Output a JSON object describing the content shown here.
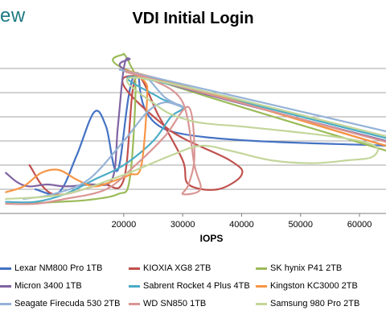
{
  "header": {
    "logo_text": "ew",
    "title": "VDI Initial Login"
  },
  "chart_data": {
    "type": "line",
    "title": "VDI Initial Login",
    "xlabel": "IOPS",
    "ylabel": "",
    "xlim": [
      -1000,
      64500
    ],
    "ylim": [
      0,
      1.75
    ],
    "x_ticks": [
      20000,
      30000,
      40000,
      50000,
      60000
    ],
    "x_tick_labels": [
      "20000",
      "30000",
      "40000",
      "50000",
      "60000"
    ],
    "y_gridlines": [
      0.25,
      0.5,
      0.75,
      1.0,
      1.25,
      1.5
    ],
    "grid": "horizontal",
    "legend_placement": "bottom",
    "series": [
      {
        "name": "Lexar NM800 Pro 1TB",
        "color": "#4472c4",
        "points": [
          [
            5000,
            0.25
          ],
          [
            9000,
            0.22
          ],
          [
            12000,
            0.6
          ],
          [
            15000,
            1.05
          ],
          [
            17000,
            0.9
          ],
          [
            19000,
            0.45
          ],
          [
            22000,
            1.45
          ],
          [
            28000,
            0.85
          ],
          [
            64500,
            0.7
          ]
        ]
      },
      {
        "name": "KIOXIA XG8 2TB",
        "color": "#c0504d",
        "points": [
          [
            4000,
            0.5
          ],
          [
            8000,
            0.2
          ],
          [
            16000,
            0.3
          ],
          [
            20000,
            0.35
          ],
          [
            22000,
            1.4
          ],
          [
            26000,
            1.0
          ],
          [
            30000,
            0.55
          ],
          [
            31000,
            0.3
          ],
          [
            36000,
            0.25
          ],
          [
            40000,
            0.4
          ],
          [
            38000,
            0.55
          ],
          [
            27000,
            0.9
          ],
          [
            22000,
            1.42
          ],
          [
            64500,
            0.7
          ]
        ]
      },
      {
        "name": "SK hynix P41 2TB",
        "color": "#9bbb59",
        "points": [
          [
            3000,
            0.1
          ],
          [
            9000,
            0.12
          ],
          [
            14000,
            0.14
          ],
          [
            19000,
            0.2
          ],
          [
            21000,
            0.35
          ],
          [
            22000,
            1.3
          ],
          [
            21000,
            1.55
          ],
          [
            20000,
            1.65
          ],
          [
            22000,
            1.45
          ],
          [
            64500,
            0.65
          ]
        ]
      },
      {
        "name": "Micron 3400 1TB",
        "color": "#8064a2",
        "points": [
          [
            0,
            0.42
          ],
          [
            2000,
            0.32
          ],
          [
            4000,
            0.28
          ],
          [
            7000,
            0.3
          ],
          [
            10000,
            0.28
          ],
          [
            14000,
            0.3
          ],
          [
            18000,
            0.35
          ],
          [
            19000,
            0.9
          ],
          [
            20000,
            1.5
          ],
          [
            21000,
            1.6
          ],
          [
            23000,
            1.42
          ],
          [
            64500,
            0.75
          ]
        ]
      },
      {
        "name": "Sabrent Rocket 4 Plus 4TB",
        "color": "#4bacc6",
        "points": [
          [
            0,
            0.12
          ],
          [
            5000,
            0.12
          ],
          [
            10000,
            0.2
          ],
          [
            15000,
            0.35
          ],
          [
            20000,
            0.5
          ],
          [
            25000,
            0.75
          ],
          [
            28000,
            1.0
          ],
          [
            30000,
            1.1
          ],
          [
            26000,
            1.2
          ],
          [
            23000,
            1.4
          ],
          [
            64500,
            0.78
          ]
        ]
      },
      {
        "name": "Kingston KC3000 2TB",
        "color": "#f79646",
        "points": [
          [
            0,
            0.22
          ],
          [
            3000,
            0.28
          ],
          [
            6000,
            0.42
          ],
          [
            9000,
            0.45
          ],
          [
            12000,
            0.35
          ],
          [
            15000,
            0.28
          ],
          [
            18000,
            0.33
          ],
          [
            21000,
            0.4
          ],
          [
            23000,
            0.5
          ],
          [
            24000,
            1.3
          ],
          [
            23000,
            1.44
          ],
          [
            64500,
            0.7
          ]
        ]
      },
      {
        "name": "Seagate Firecuda 530 2TB",
        "color": "#95b3d7",
        "points": [
          [
            3000,
            0.15
          ],
          [
            8000,
            0.2
          ],
          [
            14000,
            0.35
          ],
          [
            20000,
            0.75
          ],
          [
            24000,
            1.05
          ],
          [
            27000,
            1.15
          ],
          [
            30000,
            1.1
          ],
          [
            27000,
            1.2
          ],
          [
            24000,
            1.4
          ],
          [
            22000,
            1.45
          ],
          [
            64500,
            0.85
          ]
        ]
      },
      {
        "name": "WD SN850 1TB",
        "color": "#d99694",
        "points": [
          [
            0,
            0.1
          ],
          [
            5000,
            0.1
          ],
          [
            10000,
            0.15
          ],
          [
            17000,
            0.25
          ],
          [
            22000,
            0.5
          ],
          [
            27000,
            0.8
          ],
          [
            31000,
            1.1
          ],
          [
            32000,
            0.6
          ],
          [
            31000,
            0.3
          ],
          [
            30000,
            0.2
          ],
          [
            33000,
            0.25
          ],
          [
            32000,
            0.5
          ],
          [
            30000,
            1.15
          ],
          [
            25000,
            1.38
          ],
          [
            23000,
            1.42
          ],
          [
            64500,
            0.74
          ]
        ]
      },
      {
        "name": "Samsung 980 Pro 2TB",
        "color": "#c3d69b",
        "points": [
          [
            0,
            0.15
          ],
          [
            10000,
            0.2
          ],
          [
            20000,
            0.4
          ],
          [
            28000,
            0.6
          ],
          [
            33000,
            0.7
          ],
          [
            38000,
            0.65
          ],
          [
            45000,
            0.55
          ],
          [
            52000,
            0.52
          ],
          [
            58000,
            0.55
          ],
          [
            62000,
            0.58
          ],
          [
            63000,
            0.68
          ],
          [
            60000,
            0.75
          ],
          [
            55000,
            0.8
          ],
          [
            48000,
            0.85
          ],
          [
            40000,
            0.9
          ],
          [
            32000,
            0.95
          ],
          [
            26000,
            1.1
          ],
          [
            23000,
            1.4
          ],
          [
            64500,
            0.8
          ]
        ]
      }
    ]
  }
}
